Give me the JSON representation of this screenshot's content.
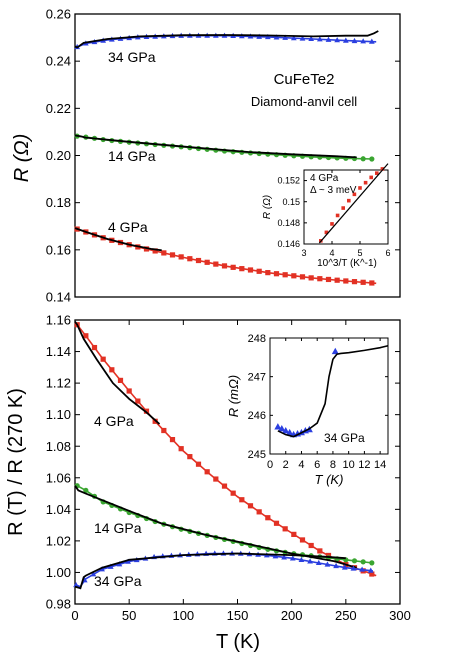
{
  "figure": {
    "title": "CuFeTe2",
    "subtitle": "Diamond-anvil cell",
    "x_label": "T (K)"
  },
  "chart_data": [
    {
      "type": "line",
      "ylabel": "R (Ω)",
      "xlim": [
        0,
        300
      ],
      "ylim": [
        0.14,
        0.26
      ],
      "yticks": [
        "0.14",
        "0.16",
        "0.18",
        "0.20",
        "0.22",
        "0.24",
        "0.26"
      ],
      "series": [
        {
          "name": "34 GPa",
          "color": "#2b3fe0",
          "marker": "triangle",
          "x": [
            2,
            10,
            30,
            60,
            100,
            140,
            180,
            220,
            250,
            278
          ],
          "y": [
            0.246,
            0.2475,
            0.249,
            0.2502,
            0.2508,
            0.2508,
            0.2502,
            0.2494,
            0.2487,
            0.2482
          ],
          "fit": {
            "x": [
              0,
              2,
              8,
              30,
              60,
              100,
              140,
              180,
              220,
              250,
              270,
              276,
              280
            ],
            "y": [
              0.2462,
              0.2458,
              0.2478,
              0.2494,
              0.2505,
              0.251,
              0.2511,
              0.2509,
              0.2505,
              0.2508,
              0.2508,
              0.2518,
              0.2528
            ]
          }
        },
        {
          "name": "14 GPa",
          "color": "#3aa531",
          "marker": "circle",
          "x": [
            2,
            10,
            30,
            60,
            100,
            140,
            180,
            220,
            250,
            275
          ],
          "y": [
            0.2082,
            0.2078,
            0.2065,
            0.2052,
            0.2036,
            0.2018,
            0.2005,
            0.1994,
            0.1988,
            0.1985
          ],
          "fit": {
            "x": [
              0,
              5,
              10,
              50,
              80,
              120,
              160,
              200,
              240,
              260
            ],
            "y": [
              0.2085,
              0.2082,
              0.2076,
              0.2058,
              0.2046,
              0.203,
              0.2015,
              0.2005,
              0.1997,
              0.1992
            ]
          }
        },
        {
          "name": "4 GPa",
          "color": "#e23124",
          "marker": "square",
          "x": [
            2,
            30,
            60,
            100,
            140,
            180,
            220,
            250,
            278
          ],
          "y": [
            0.1688,
            0.1645,
            0.161,
            0.1568,
            0.153,
            0.1502,
            0.148,
            0.1468,
            0.1458
          ],
          "fit": {
            "x": [
              0,
              10,
              30,
              50,
              70,
              80
            ],
            "y": [
              0.1692,
              0.1676,
              0.1646,
              0.1622,
              0.1604,
              0.1598
            ]
          }
        }
      ],
      "annotations": [
        "34 GPa",
        "14 GPa",
        "4 GPa"
      ],
      "inset": {
        "type": "line",
        "xlabel": "10^3/T (K^-1)",
        "ylabel": "R (Ω)",
        "label": "4 GPa",
        "note": "Δ ~ 3 meV",
        "xlim": [
          3,
          6
        ],
        "ylim": [
          0.146,
          0.153
        ],
        "xticks": [
          "3",
          "4",
          "5",
          "6"
        ],
        "yticks": [
          "0.146",
          "0.148",
          "0.15",
          "0.152"
        ],
        "data": {
          "x": [
            3.6,
            3.8,
            4.0,
            4.2,
            4.4,
            4.6,
            4.8,
            5.0,
            5.2,
            5.4,
            5.6,
            5.8
          ],
          "y": [
            0.1463,
            0.1471,
            0.1479,
            0.1487,
            0.1494,
            0.1501,
            0.1507,
            0.1513,
            0.1518,
            0.1523,
            0.1527,
            0.1531
          ]
        },
        "fit": {
          "x": [
            3.55,
            6.0
          ],
          "y": [
            0.1461,
            0.1536
          ]
        }
      }
    },
    {
      "type": "line",
      "ylabel": "R (T) / R (270 K)",
      "xlim": [
        0,
        300
      ],
      "ylim": [
        0.98,
        1.16
      ],
      "yticks": [
        "0.98",
        "1.00",
        "1.02",
        "1.04",
        "1.06",
        "1.08",
        "1.10",
        "1.12",
        "1.14",
        "1.16"
      ],
      "xticks": [
        "0",
        "50",
        "100",
        "150",
        "200",
        "250",
        "300"
      ],
      "series": [
        {
          "name": "4 GPa",
          "color": "#e23124",
          "marker": "square",
          "x": [
            2,
            10,
            25,
            50,
            75,
            100,
            125,
            150,
            175,
            200,
            225,
            250,
            270,
            278
          ],
          "y": [
            1.157,
            1.15,
            1.136,
            1.115,
            1.095,
            1.077,
            1.062,
            1.048,
            1.036,
            1.025,
            1.014,
            1.005,
            1.0,
            0.998
          ],
          "fit": {
            "x": [
              0,
              2,
              8,
              20,
              35,
              50,
              65,
              78
            ],
            "y": [
              1.159,
              1.157,
              1.148,
              1.135,
              1.12,
              1.11,
              1.102,
              1.094
            ]
          }
        },
        {
          "name": "14 GPa",
          "color": "#3aa531",
          "marker": "circle",
          "x": [
            2,
            10,
            25,
            50,
            75,
            100,
            125,
            150,
            175,
            200,
            225,
            250,
            275
          ],
          "y": [
            1.055,
            1.052,
            1.045,
            1.038,
            1.032,
            1.027,
            1.023,
            1.019,
            1.015,
            1.012,
            1.01,
            1.008,
            1.006
          ],
          "fit": {
            "x": [
              0,
              3,
              10,
              50,
              80,
              120,
              160,
              200,
              240,
              260
            ],
            "y": [
              1.055,
              1.052,
              1.05,
              1.039,
              1.031,
              1.024,
              1.018,
              1.012,
              1.007,
              1.003
            ]
          }
        },
        {
          "name": "34 GPa",
          "color": "#2b3fe0",
          "marker": "triangle",
          "x": [
            1,
            5,
            10,
            25,
            50,
            75,
            100,
            125,
            150,
            175,
            200,
            225,
            250,
            275
          ],
          "y": [
            0.992,
            0.991,
            0.996,
            1.002,
            1.007,
            1.01,
            1.011,
            1.012,
            1.012,
            1.011,
            1.009,
            1.006,
            1.003,
            1.001
          ],
          "fit": {
            "x": [
              0,
              5,
              8,
              10,
              25,
              50,
              100,
              150,
              200,
              230,
              250
            ],
            "y": [
              0.991,
              0.99,
              0.997,
              0.998,
              1.003,
              1.008,
              1.011,
              1.012,
              1.011,
              1.01,
              1.009
            ]
          }
        }
      ],
      "annotations": [
        "4 GPa",
        "14 GPa",
        "34 GPa"
      ],
      "inset": {
        "type": "line",
        "xlabel": "T (K)",
        "ylabel": "R (mΩ)",
        "label": "34 GPa",
        "xlim": [
          0,
          15
        ],
        "ylim": [
          245,
          248
        ],
        "xticks": [
          "0",
          "2",
          "4",
          "6",
          "8",
          "10",
          "12",
          "14"
        ],
        "yticks": [
          "245",
          "246",
          "247",
          "248"
        ],
        "data": {
          "x": [
            1.0,
            1.5,
            2.0,
            2.5,
            3.0,
            3.5,
            4.0,
            4.5,
            5.0,
            8.3
          ],
          "y": [
            245.7,
            245.65,
            245.6,
            245.55,
            245.5,
            245.52,
            245.55,
            245.6,
            245.63,
            247.65
          ]
        },
        "fit": {
          "x": [
            1,
            2,
            3,
            4,
            5,
            6,
            7,
            7.5,
            8,
            8.5,
            9,
            10,
            12,
            14,
            15
          ],
          "y": [
            245.6,
            245.5,
            245.45,
            245.55,
            245.65,
            245.8,
            246.3,
            247.0,
            247.45,
            247.58,
            247.6,
            247.62,
            247.68,
            247.75,
            247.8
          ]
        }
      }
    }
  ]
}
